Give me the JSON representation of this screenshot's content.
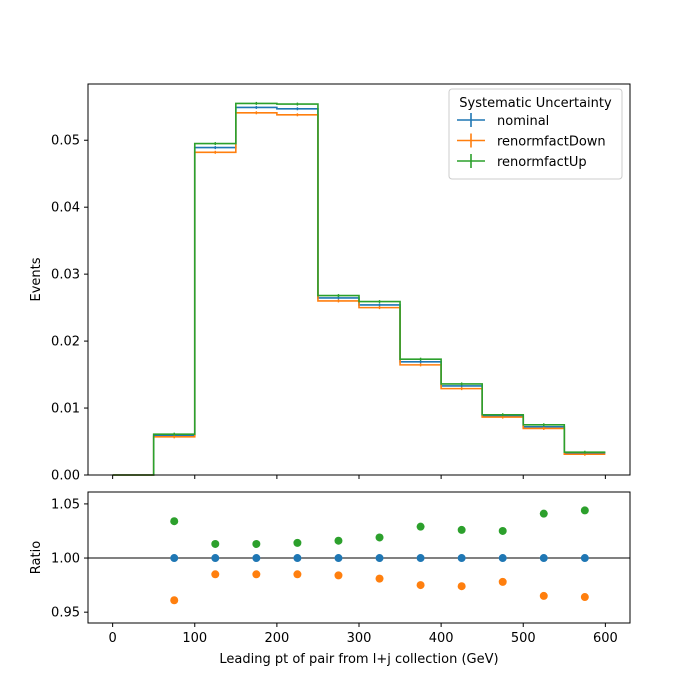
{
  "chart_data": [
    {
      "type": "line",
      "panel": "main",
      "xlim": [
        -30,
        630
      ],
      "ylim": [
        0,
        0.0584
      ],
      "ylabel": "Events",
      "y_ticks": [
        0.0,
        0.01,
        0.02,
        0.03,
        0.04,
        0.05
      ],
      "y_tick_labels": [
        "0.00",
        "0.01",
        "0.02",
        "0.03",
        "0.04",
        "0.05"
      ],
      "x_ticks": [
        0,
        100,
        200,
        300,
        400,
        500,
        600
      ],
      "bin_edges": [
        0,
        50,
        100,
        150,
        200,
        250,
        300,
        350,
        400,
        450,
        500,
        550,
        600
      ],
      "legend": {
        "title": "Systematic Uncertainty",
        "location": "top-right"
      },
      "series": [
        {
          "name": "nominal",
          "color": "#1f77b4",
          "values": [
            0.0,
            0.00595,
            0.0489,
            0.0549,
            0.0547,
            0.02645,
            0.0254,
            0.0169,
            0.0133,
            0.00885,
            0.0072,
            0.0033
          ]
        },
        {
          "name": "renormfactDown",
          "color": "#ff7f0e",
          "values": [
            0.0,
            0.0057,
            0.0482,
            0.0541,
            0.0538,
            0.026,
            0.025,
            0.01645,
            0.0129,
            0.00865,
            0.00695,
            0.0031
          ]
        },
        {
          "name": "renormfactUp",
          "color": "#2ca02c",
          "values": [
            0.0,
            0.0061,
            0.0495,
            0.0555,
            0.0554,
            0.0268,
            0.0259,
            0.0173,
            0.0136,
            0.009,
            0.0075,
            0.0034
          ]
        }
      ]
    },
    {
      "type": "scatter",
      "panel": "ratio",
      "xlim": [
        -30,
        630
      ],
      "ylim": [
        0.94,
        1.061
      ],
      "xlabel": "Leading pt of pair from l+j collection (GeV)",
      "ylabel": "Ratio",
      "reference_line": 1.0,
      "y_ticks": [
        0.95,
        1.0,
        1.05
      ],
      "y_tick_labels": [
        "0.95",
        "1.00",
        "1.05"
      ],
      "x_ticks": [
        0,
        100,
        200,
        300,
        400,
        500,
        600
      ],
      "x_tick_labels": [
        "0",
        "100",
        "200",
        "300",
        "400",
        "500",
        "600"
      ],
      "x": [
        75,
        125,
        175,
        225,
        275,
        325,
        375,
        425,
        475,
        525,
        575
      ],
      "series": [
        {
          "name": "nominal",
          "color": "#1f77b4",
          "values": [
            1.0,
            1.0,
            1.0,
            1.0,
            1.0,
            1.0,
            1.0,
            1.0,
            1.0,
            1.0,
            1.0
          ]
        },
        {
          "name": "renormfactDown",
          "color": "#ff7f0e",
          "values": [
            0.961,
            0.985,
            0.985,
            0.985,
            0.984,
            0.981,
            0.975,
            0.974,
            0.978,
            0.965,
            0.964
          ]
        },
        {
          "name": "renormfactUp",
          "color": "#2ca02c",
          "values": [
            1.034,
            1.013,
            1.013,
            1.014,
            1.016,
            1.019,
            1.029,
            1.026,
            1.025,
            1.041,
            1.044
          ]
        }
      ]
    }
  ]
}
